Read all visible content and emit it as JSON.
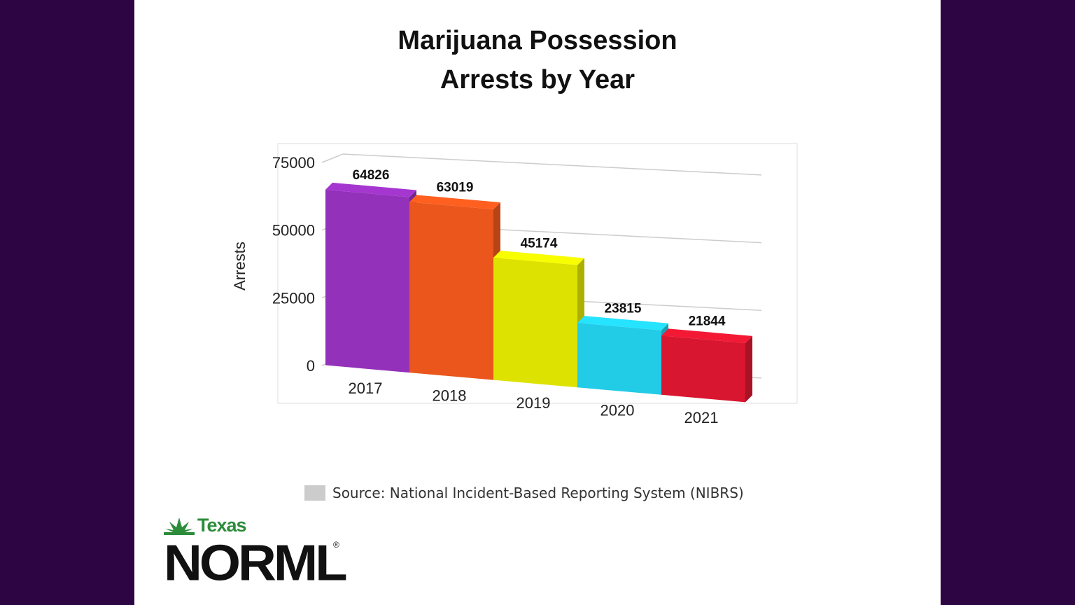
{
  "chart_data": {
    "type": "bar3d",
    "title": "Marijuana Possession Arrests by Year",
    "y_label": "Arrests",
    "categories": [
      "2017",
      "2018",
      "2019",
      "2020",
      "2021"
    ],
    "values": [
      64826,
      63019,
      45174,
      23815,
      21844
    ],
    "colors": [
      "#9331ba",
      "#ea561c",
      "#dde200",
      "#22cbe6",
      "#d9162f"
    ],
    "ylim": [
      0,
      75000
    ],
    "yticks": [
      0,
      25000,
      50000,
      75000
    ],
    "grid": true,
    "source": "Source: National Incident-Based Reporting System (NIBRS)"
  },
  "logo": {
    "state": "Texas",
    "name": "NORML",
    "mark": "®"
  }
}
